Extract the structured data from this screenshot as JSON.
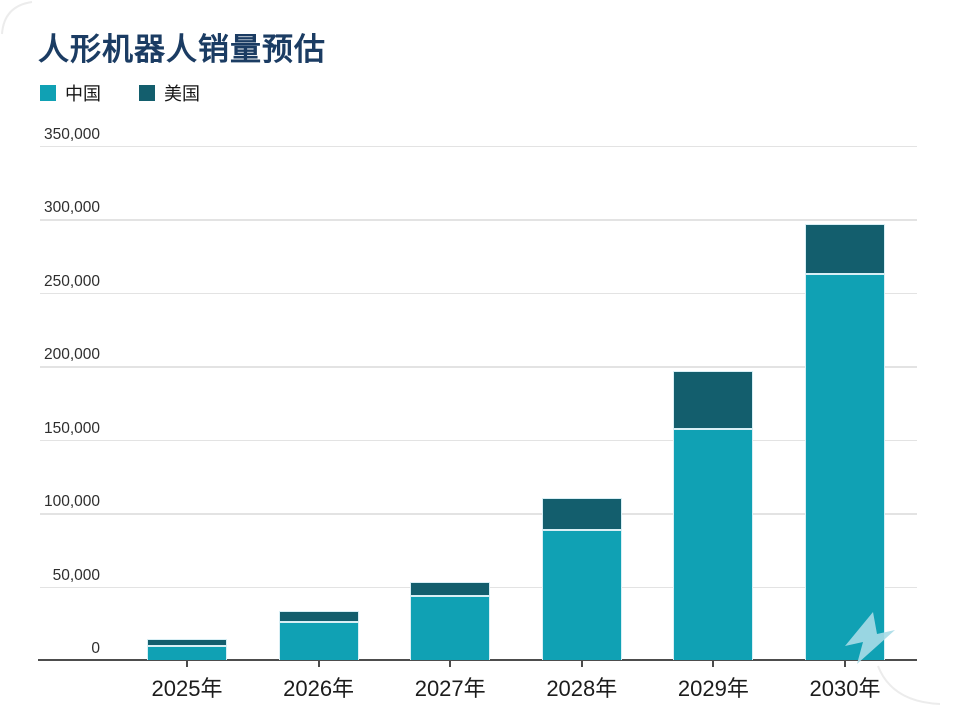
{
  "title": "人形机器人销量预估",
  "legend": [
    {
      "label": "中国",
      "color": "#10A1B4"
    },
    {
      "label": "美国",
      "color": "#135E6D"
    }
  ],
  "chart_data": {
    "type": "bar",
    "stacked": true,
    "title": "人形机器人销量预估",
    "categories": [
      "2025年",
      "2026年",
      "2027年",
      "2028年",
      "2029年",
      "2030年"
    ],
    "series": [
      {
        "name": "中国",
        "color": "#10A1B4",
        "values": [
          10500,
          26500,
          44500,
          89000,
          158000,
          263500
        ]
      },
      {
        "name": "美国",
        "color": "#135E6D",
        "values": [
          4000,
          7000,
          8500,
          21000,
          38500,
          33000
        ]
      }
    ],
    "totals": [
      14500,
      33500,
      53000,
      110000,
      196500,
      296500
    ],
    "ylim": [
      0,
      350000
    ],
    "ytick_step": 50000,
    "ytick_labels": [
      "0",
      "50,000",
      "100,000",
      "150,000",
      "200,000",
      "250,000",
      "300,000",
      "350,000"
    ],
    "grid": "horizontal",
    "legend_position": "top-left",
    "xlabel": "",
    "ylabel": ""
  },
  "colors": {
    "title": "#1B3C63",
    "axis": "#4D4D4D",
    "gridline": "#E3E3E3",
    "segment_outline": "#D8EFF5",
    "watermark": "#A9DBE7"
  },
  "watermark": {
    "name": "bird-watermark"
  }
}
